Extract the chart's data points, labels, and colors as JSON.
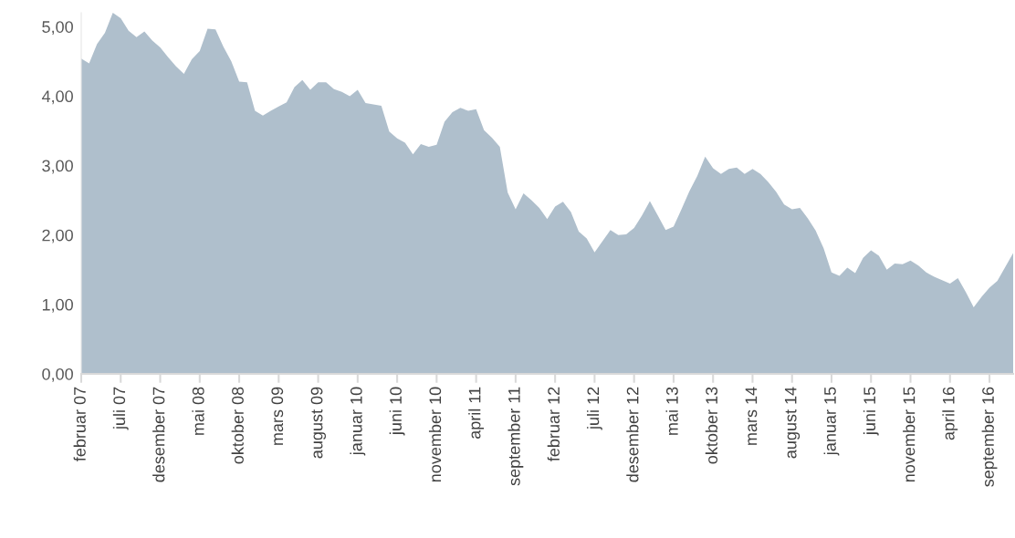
{
  "chart_data": {
    "type": "area",
    "color": "#afbfcc",
    "categories": [
      "februar 07",
      null,
      null,
      null,
      null,
      "juli 07",
      null,
      null,
      null,
      null,
      "desember 07",
      null,
      null,
      null,
      null,
      "mai 08",
      null,
      null,
      null,
      null,
      "oktober 08",
      null,
      null,
      null,
      null,
      "mars 09",
      null,
      null,
      null,
      null,
      "august 09",
      null,
      null,
      null,
      null,
      "januar 10",
      null,
      null,
      null,
      null,
      "juni 10",
      null,
      null,
      null,
      null,
      "november 10",
      null,
      null,
      null,
      null,
      "april 11",
      null,
      null,
      null,
      null,
      "september 11",
      null,
      null,
      null,
      null,
      "februar 12",
      null,
      null,
      null,
      null,
      "juli 12",
      null,
      null,
      null,
      null,
      "desember 12",
      null,
      null,
      null,
      null,
      "mai 13",
      null,
      null,
      null,
      null,
      "oktober 13",
      null,
      null,
      null,
      null,
      "mars 14",
      null,
      null,
      null,
      null,
      "august 14",
      null,
      null,
      null,
      null,
      "januar 15",
      null,
      null,
      null,
      null,
      "juni 15",
      null,
      null,
      null,
      null,
      "november 15",
      null,
      null,
      null,
      null,
      "april 16",
      null,
      null,
      null,
      null,
      "september 16",
      null,
      null,
      null
    ],
    "values": [
      4.54,
      4.47,
      4.75,
      4.91,
      5.2,
      5.12,
      4.94,
      4.85,
      4.93,
      4.8,
      4.7,
      4.56,
      4.43,
      4.32,
      4.53,
      4.65,
      4.97,
      4.96,
      4.71,
      4.5,
      4.21,
      4.2,
      3.79,
      3.72,
      3.79,
      3.85,
      3.91,
      4.13,
      4.23,
      4.09,
      4.2,
      4.2,
      4.1,
      4.06,
      4.0,
      4.09,
      3.9,
      3.88,
      3.86,
      3.49,
      3.39,
      3.33,
      3.16,
      3.31,
      3.27,
      3.3,
      3.63,
      3.77,
      3.83,
      3.79,
      3.81,
      3.51,
      3.4,
      3.27,
      2.61,
      2.37,
      2.6,
      2.5,
      2.39,
      2.23,
      2.41,
      2.48,
      2.33,
      2.05,
      1.95,
      1.75,
      1.91,
      2.07,
      2.0,
      2.01,
      2.1,
      2.28,
      2.49,
      2.28,
      2.07,
      2.12,
      2.37,
      2.63,
      2.85,
      3.13,
      2.96,
      2.88,
      2.95,
      2.97,
      2.88,
      2.95,
      2.88,
      2.76,
      2.62,
      2.44,
      2.37,
      2.39,
      2.24,
      2.06,
      1.81,
      1.46,
      1.41,
      1.53,
      1.45,
      1.67,
      1.78,
      1.7,
      1.5,
      1.59,
      1.58,
      1.63,
      1.56,
      1.46,
      1.4,
      1.35,
      1.3,
      1.38,
      1.18,
      0.96,
      1.11,
      1.24,
      1.34,
      1.54,
      1.74
    ],
    "ylim": [
      0,
      5.2
    ],
    "yticks": [
      {
        "value": 0,
        "label": "0,00"
      },
      {
        "value": 1,
        "label": "1,00"
      },
      {
        "value": 2,
        "label": "2,00"
      },
      {
        "value": 3,
        "label": "3,00"
      },
      {
        "value": 4,
        "label": "4,00"
      },
      {
        "value": 5,
        "label": "5,00"
      }
    ],
    "grid": false,
    "legend": false
  }
}
